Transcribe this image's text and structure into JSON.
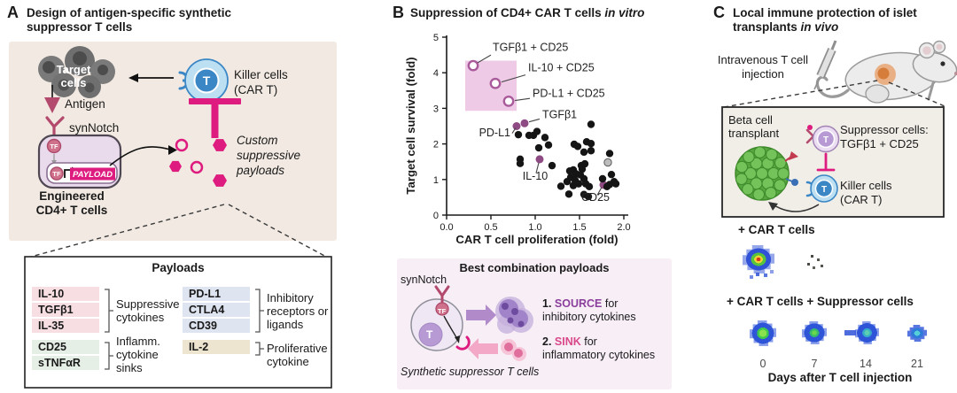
{
  "colors": {
    "magenta": "#de1b7e",
    "dark_rose": "#b34a6d",
    "purple_accent": "#8b3f9c",
    "pink_accent": "#d9488a",
    "panel_a_bg": "#f2eae2",
    "combo_box_bg": "#f7eef6",
    "panel_c_box_bg": "#f1eee8",
    "highlight_region": "#eecae6",
    "scatter_purple": "#8e4a82",
    "killer_blue": "#3b87c6",
    "killer_blue_light": "#bcdff2",
    "suppressor_purple": "#b79ad4",
    "beta_green": "#57a73f",
    "row_pink": "#f7dee2",
    "row_mint": "#e5efe6",
    "row_blue": "#dfe4f1",
    "row_tan": "#eee5d1"
  },
  "panelA": {
    "letter": "A",
    "title_line1": "Design of antigen-specific synthetic",
    "title_line2": "suppressor T cells",
    "diagram": {
      "target_label_line1": "Target",
      "target_label_line2": "cells",
      "antigen_label": "Antigen",
      "synnotch_label": "synNotch",
      "tf_label": "TF",
      "payload_label": "PAYLOAD",
      "engineered_line1": "Engineered",
      "engineered_line2": "CD4+ T cells",
      "killer_line1": "Killer cells",
      "killer_line2": "(CAR T)",
      "t_label": "T",
      "custom_payloads_label": "Custom suppressive payloads"
    },
    "payloads": {
      "title": "Payloads",
      "groups": [
        {
          "items": [
            "IL-10",
            "TGFβ1",
            "IL-35"
          ],
          "label": "Suppressive cytokines"
        },
        {
          "items": [
            "CD25",
            "sTNFαR"
          ],
          "label": "Inflamm. cytokine sinks"
        },
        {
          "items": [
            "PD-L1",
            "CTLA4",
            "CD39"
          ],
          "label": "Inhibitory receptors or ligands"
        },
        {
          "items": [
            "IL-2"
          ],
          "label": "Proliferative cytokine"
        }
      ]
    }
  },
  "panelB": {
    "letter": "B",
    "title_main": "Suppression of CD4+ CAR T cells ",
    "title_italic": "in vitro",
    "best_combo": {
      "title": "Best combination payloads",
      "synnotch_label": "synNotch",
      "tf_label": "TF",
      "t_label": "T",
      "item1_num": "1. ",
      "item1_keyword": "SOURCE",
      "item1_rest": " for",
      "item1_line2": "inhibitory cytokines",
      "item2_num": "2. ",
      "item2_keyword": "SINK",
      "item2_rest": " for",
      "item2_line2": "inflammatory cytokines",
      "caption": "Synthetic suppressor T cells"
    }
  },
  "chart_data": {
    "type": "scatter",
    "title": "Suppression of CD4+ CAR T cells in vitro",
    "xlabel": "CAR T cell proliferation (fold)",
    "ylabel": "Target cell survival (fold)",
    "xlim": [
      0,
      2.0
    ],
    "ylim": [
      0,
      5
    ],
    "xticks": [
      "0.0",
      "0.5",
      "1.0",
      "1.5",
      "2.0"
    ],
    "xtick_values": [
      0,
      0.5,
      1,
      1.5,
      2
    ],
    "yticks": [
      "0",
      "1",
      "2",
      "3",
      "4",
      "5"
    ],
    "ytick_values": [
      0,
      1,
      2,
      3,
      4,
      5
    ],
    "grid": false,
    "highlight_region": {
      "x0": 0.21,
      "x1": 0.79,
      "y0": 2.93,
      "y1": 4.34
    },
    "series": [
      {
        "name": "combination-payloads",
        "marker": "open",
        "color": "#a85a9a",
        "points": [
          [
            0.3,
            4.2
          ],
          [
            0.55,
            3.7
          ],
          [
            0.7,
            3.2
          ]
        ],
        "labels": [
          "TGFβ1 + CD25",
          "IL-10 + CD25",
          "PD-L1 + CD25"
        ]
      },
      {
        "name": "highlighted-single-payloads",
        "marker": "filled",
        "color": "#8e4a82",
        "points": [
          [
            0.88,
            2.58
          ],
          [
            0.79,
            2.5
          ],
          [
            1.05,
            1.57
          ],
          [
            1.77,
            0.85
          ]
        ],
        "labels": [
          "TGFβ1",
          "PD-L1",
          "IL-10",
          "CD25"
        ]
      },
      {
        "name": "control-gray",
        "marker": "filled",
        "color": "#bdbdbd",
        "stroke": "#5a5a5a",
        "points": [
          [
            1.82,
            1.48
          ]
        ]
      },
      {
        "name": "other-payloads",
        "marker": "filled",
        "color": "#151515",
        "points": [
          [
            0.81,
            2.26
          ],
          [
            0.93,
            2.24
          ],
          [
            0.98,
            2.24
          ],
          [
            1.02,
            2.35
          ],
          [
            1.04,
            1.89
          ],
          [
            1.11,
            2.18
          ],
          [
            1.15,
            1.97
          ],
          [
            0.83,
            1.57
          ],
          [
            0.83,
            1.45
          ],
          [
            1.19,
            1.39
          ],
          [
            1.63,
            2.55
          ],
          [
            1.44,
            1.99
          ],
          [
            1.48,
            1.93
          ],
          [
            1.55,
            1.77
          ],
          [
            1.58,
            2.06
          ],
          [
            1.63,
            2.01
          ],
          [
            1.63,
            1.81
          ],
          [
            1.84,
            1.73
          ],
          [
            1.43,
            1.27
          ],
          [
            1.46,
            1.16
          ],
          [
            1.39,
            1.24
          ],
          [
            1.52,
            1.39
          ],
          [
            1.53,
            1.29
          ],
          [
            1.56,
            1.44
          ],
          [
            1.51,
            1.13
          ],
          [
            1.55,
            1.02
          ],
          [
            1.45,
            0.98
          ],
          [
            1.4,
            1.06
          ],
          [
            1.36,
            0.94
          ],
          [
            1.43,
            0.83
          ],
          [
            1.49,
            0.88
          ],
          [
            1.57,
            0.88
          ],
          [
            1.61,
            0.8
          ],
          [
            1.29,
            0.81
          ],
          [
            1.38,
            0.59
          ],
          [
            1.55,
            0.58
          ],
          [
            1.6,
            0.52
          ],
          [
            1.86,
            1.14
          ],
          [
            1.89,
            0.94
          ],
          [
            1.84,
            0.86
          ],
          [
            1.91,
            0.88
          ],
          [
            1.81,
            0.8
          ],
          [
            1.76,
            1.02
          ]
        ]
      }
    ],
    "annotations": [
      {
        "label": "TGFβ1 + CD25",
        "tx": 0.52,
        "ty": 4.62,
        "anchor": "start",
        "line": [
          0.35,
          4.28,
          0.5,
          4.5
        ]
      },
      {
        "label": "IL-10 + CD25",
        "tx": 0.92,
        "ty": 4.04,
        "anchor": "start",
        "line": [
          0.62,
          3.74,
          0.89,
          3.94
        ]
      },
      {
        "label": "PD-L1 + CD25",
        "tx": 0.97,
        "ty": 3.32,
        "anchor": "start",
        "line": [
          0.77,
          3.22,
          0.94,
          3.28
        ]
      },
      {
        "label": "TGFβ1",
        "tx": 1.08,
        "ty": 2.72,
        "anchor": "start",
        "line": [
          0.93,
          2.62,
          1.05,
          2.7
        ]
      },
      {
        "label": "PD-L1",
        "tx": 0.72,
        "ty": 2.22,
        "anchor": "end",
        "line": [
          0.74,
          2.3,
          0.78,
          2.45
        ]
      },
      {
        "label": "IL-10",
        "tx": 1.0,
        "ty": 1.0,
        "anchor": "middle",
        "line": [
          1.04,
          1.47,
          1.01,
          1.18
        ]
      },
      {
        "label": "CD25",
        "tx": 1.68,
        "ty": 0.4,
        "anchor": "middle",
        "line": [
          1.75,
          0.78,
          1.7,
          0.56
        ]
      }
    ]
  },
  "panelC": {
    "letter": "C",
    "title_line1": "Local immune protection of islet",
    "title_line2_pre": "transplants ",
    "title_line2_italic": "in vivo",
    "injection_line1": "Intravenous T cell",
    "injection_line2": "injection",
    "box": {
      "beta_line1": "Beta cell",
      "beta_line2": "transplant",
      "suppressor_line1": "Suppressor cells:",
      "suppressor_line2": "TGFβ1 + CD25",
      "killer_line1": "Killer cells",
      "killer_line2": "(CAR T)",
      "t_label": "T"
    },
    "rows": [
      {
        "label": "+ CAR T cells",
        "images": [
          "hotspot",
          "specks",
          "blank",
          "blank"
        ]
      },
      {
        "label": "+ CAR T cells + Suppressor cells",
        "images": [
          "blob-large",
          "blob-medium",
          "blob-arm",
          "blob-small"
        ]
      }
    ],
    "day_labels": [
      "0",
      "7",
      "14",
      "21"
    ],
    "x_axis_label": "Days after T cell injection"
  }
}
